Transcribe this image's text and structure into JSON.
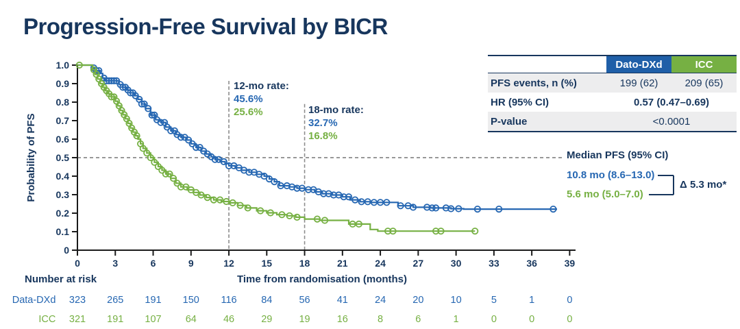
{
  "title": "Progression-Free Survival by BICR",
  "colors": {
    "navy": "#17365D",
    "dato_blue": "#2667B2",
    "icc_green": "#76B043",
    "header_blue_bg": "#1F5FA8",
    "header_green_bg": "#76B043",
    "row_gray": "#EDEDEE",
    "dash_gray": "#8C8C8C",
    "axis_black": "#1a1a1a"
  },
  "summary_table": {
    "col_dato": "Dato-DXd",
    "col_icc": "ICC",
    "row_events_label": "PFS events, n (%)",
    "row_events_dato": "199 (62)",
    "row_events_icc": "209 (65)",
    "row_hr_label": "HR (95% CI)",
    "row_hr_value": "0.57 (0.47–0.69)",
    "row_p_label": "P-value",
    "row_p_value": "<0.0001"
  },
  "annotations": {
    "rate12_label": "12-mo rate:",
    "rate12_dato": "45.6%",
    "rate12_icc": "25.6%",
    "rate18_label": "18-mo rate:",
    "rate18_dato": "32.7%",
    "rate18_icc": "16.8%",
    "median_title": "Median PFS (95% CI)",
    "median_dato": "10.8 mo (8.6–13.0)",
    "median_icc": "5.6 mo (5.0–7.0)",
    "median_delta": "Δ 5.3 mo*"
  },
  "chart_data": {
    "type": "line",
    "subtype": "kaplan-meier-step",
    "title": "Progression-Free Survival by BICR",
    "xlabel": "Time from randomisation (months)",
    "ylabel": "Probability of PFS",
    "xlim": [
      0,
      39
    ],
    "ylim": [
      0,
      1.0
    ],
    "xticks": [
      0,
      3,
      6,
      9,
      12,
      15,
      18,
      21,
      24,
      27,
      30,
      33,
      36,
      39
    ],
    "yticks": [
      0,
      0.1,
      0.2,
      0.3,
      0.4,
      0.5,
      0.6,
      0.7,
      0.8,
      0.9,
      1.0
    ],
    "ytick_labels": [
      "0",
      "0.1",
      "0.2",
      "0.3",
      "0.4",
      "0.5",
      "0.6",
      "0.7",
      "0.8",
      "0.9",
      "1.0"
    ],
    "grid": false,
    "legend_position": "none",
    "reference_lines": {
      "horizontal": [
        {
          "y": 0.5,
          "x_start": 0,
          "x_end": 38.4,
          "style": "dashed"
        }
      ],
      "vertical": [
        {
          "x": 12,
          "top": 0.915,
          "style": "dashed"
        },
        {
          "x": 18,
          "top": 0.79,
          "style": "dashed"
        }
      ]
    },
    "series": [
      {
        "name": "Dato-DXd",
        "color": "#2667B2",
        "median_months": 10.8,
        "rate_12mo": 0.456,
        "rate_18mo": 0.327,
        "steps": [
          [
            0,
            1.0
          ],
          [
            1.2,
            0.985
          ],
          [
            1.5,
            0.97
          ],
          [
            1.8,
            0.955
          ],
          [
            2.0,
            0.93
          ],
          [
            2.2,
            0.915
          ],
          [
            3.3,
            0.895
          ],
          [
            3.6,
            0.88
          ],
          [
            3.9,
            0.865
          ],
          [
            4.2,
            0.85
          ],
          [
            4.5,
            0.835
          ],
          [
            4.8,
            0.815
          ],
          [
            5.1,
            0.79
          ],
          [
            5.4,
            0.765
          ],
          [
            5.8,
            0.73
          ],
          [
            6.2,
            0.705
          ],
          [
            6.6,
            0.69
          ],
          [
            7.0,
            0.665
          ],
          [
            7.4,
            0.645
          ],
          [
            7.8,
            0.625
          ],
          [
            8.2,
            0.61
          ],
          [
            8.6,
            0.595
          ],
          [
            9.0,
            0.575
          ],
          [
            9.4,
            0.555
          ],
          [
            9.8,
            0.535
          ],
          [
            10.2,
            0.52
          ],
          [
            10.6,
            0.505
          ],
          [
            10.9,
            0.49
          ],
          [
            11.3,
            0.478
          ],
          [
            11.7,
            0.468
          ],
          [
            12.0,
            0.456
          ],
          [
            12.5,
            0.445
          ],
          [
            13.0,
            0.432
          ],
          [
            13.6,
            0.421
          ],
          [
            14.2,
            0.41
          ],
          [
            14.8,
            0.4
          ],
          [
            15.2,
            0.385
          ],
          [
            15.6,
            0.37
          ],
          [
            16.0,
            0.348
          ],
          [
            16.8,
            0.342
          ],
          [
            17.4,
            0.335
          ],
          [
            18.0,
            0.327
          ],
          [
            18.8,
            0.315
          ],
          [
            19.4,
            0.305
          ],
          [
            20.2,
            0.298
          ],
          [
            21.0,
            0.288
          ],
          [
            21.6,
            0.272
          ],
          [
            22.4,
            0.262
          ],
          [
            23.2,
            0.258
          ],
          [
            25.4,
            0.24
          ],
          [
            26.6,
            0.232
          ],
          [
            28.0,
            0.228
          ],
          [
            29.6,
            0.224
          ],
          [
            30.6,
            0.222
          ],
          [
            38.0,
            0.222
          ]
        ],
        "censor_months": [
          1.3,
          1.5,
          1.7,
          2.1,
          2.3,
          2.5,
          2.7,
          2.9,
          3.1,
          3.4,
          3.6,
          3.8,
          4.0,
          4.2,
          4.4,
          4.6,
          4.9,
          5.1,
          5.3,
          5.6,
          5.9,
          6.1,
          6.3,
          6.6,
          6.9,
          7.1,
          7.4,
          7.7,
          7.9,
          8.2,
          8.5,
          8.8,
          9.1,
          9.4,
          9.7,
          10.0,
          10.3,
          10.6,
          10.9,
          11.2,
          11.6,
          12.0,
          12.4,
          12.8,
          13.2,
          13.6,
          14.0,
          14.4,
          14.8,
          15.2,
          15.6,
          16.1,
          16.6,
          17.0,
          17.4,
          17.8,
          18.3,
          18.7,
          19.1,
          19.5,
          19.9,
          20.3,
          20.7,
          21.1,
          21.5,
          22.0,
          22.5,
          23.0,
          23.5,
          24.0,
          24.5,
          25.6,
          26.2,
          26.6,
          27.7,
          28.1,
          28.4,
          29.2,
          29.6,
          30.2,
          31.7,
          33.4,
          37.7
        ]
      },
      {
        "name": "ICC",
        "color": "#76B043",
        "median_months": 5.6,
        "rate_12mo": 0.256,
        "rate_18mo": 0.168,
        "steps": [
          [
            0,
            1.0
          ],
          [
            1.2,
            0.975
          ],
          [
            1.4,
            0.95
          ],
          [
            1.6,
            0.925
          ],
          [
            1.8,
            0.9
          ],
          [
            2.0,
            0.88
          ],
          [
            2.2,
            0.862
          ],
          [
            2.4,
            0.845
          ],
          [
            2.7,
            0.828
          ],
          [
            3.0,
            0.805
          ],
          [
            3.2,
            0.78
          ],
          [
            3.4,
            0.755
          ],
          [
            3.6,
            0.732
          ],
          [
            3.8,
            0.71
          ],
          [
            4.0,
            0.685
          ],
          [
            4.2,
            0.66
          ],
          [
            4.4,
            0.638
          ],
          [
            4.6,
            0.618
          ],
          [
            4.8,
            0.6
          ],
          [
            5.0,
            0.575
          ],
          [
            5.2,
            0.55
          ],
          [
            5.5,
            0.525
          ],
          [
            5.8,
            0.5
          ],
          [
            6.1,
            0.475
          ],
          [
            6.4,
            0.452
          ],
          [
            6.7,
            0.432
          ],
          [
            7.0,
            0.412
          ],
          [
            7.4,
            0.388
          ],
          [
            7.8,
            0.362
          ],
          [
            8.2,
            0.342
          ],
          [
            8.7,
            0.326
          ],
          [
            9.2,
            0.312
          ],
          [
            9.7,
            0.298
          ],
          [
            10.2,
            0.285
          ],
          [
            10.8,
            0.272
          ],
          [
            11.4,
            0.263
          ],
          [
            12.0,
            0.256
          ],
          [
            12.7,
            0.242
          ],
          [
            13.4,
            0.228
          ],
          [
            14.2,
            0.213
          ],
          [
            15.0,
            0.202
          ],
          [
            15.8,
            0.192
          ],
          [
            16.6,
            0.186
          ],
          [
            17.3,
            0.178
          ],
          [
            18.0,
            0.168
          ],
          [
            19.2,
            0.161
          ],
          [
            21.5,
            0.141
          ],
          [
            23.2,
            0.112
          ],
          [
            23.8,
            0.103
          ],
          [
            31.5,
            0.103
          ]
        ],
        "censor_months": [
          0.15,
          1.3,
          1.5,
          1.7,
          1.9,
          2.1,
          2.3,
          2.5,
          2.7,
          2.9,
          3.1,
          3.3,
          3.5,
          3.7,
          3.9,
          4.1,
          4.3,
          4.5,
          4.7,
          5.0,
          5.2,
          5.5,
          5.8,
          6.1,
          6.4,
          6.7,
          7.0,
          7.3,
          7.6,
          7.9,
          8.2,
          8.6,
          9.0,
          9.4,
          9.8,
          10.3,
          10.8,
          11.3,
          11.8,
          12.3,
          12.9,
          13.5,
          14.5,
          15.3,
          16.2,
          16.8,
          17.4,
          19.0,
          19.6,
          21.8,
          22.3,
          24.6,
          25.0,
          28.4,
          28.8,
          31.5
        ]
      }
    ]
  },
  "risk_table": {
    "heading": "Number at risk",
    "rows": [
      {
        "label": "Data-DXd",
        "color": "#2667B2",
        "values": [
          "323",
          "265",
          "191",
          "150",
          "116",
          "84",
          "56",
          "41",
          "24",
          "20",
          "10",
          "5",
          "1",
          "0"
        ]
      },
      {
        "label": "ICC",
        "color": "#76B043",
        "values": [
          "321",
          "191",
          "107",
          "64",
          "46",
          "29",
          "19",
          "16",
          "8",
          "6",
          "1",
          "0",
          "0",
          "0"
        ]
      }
    ]
  }
}
